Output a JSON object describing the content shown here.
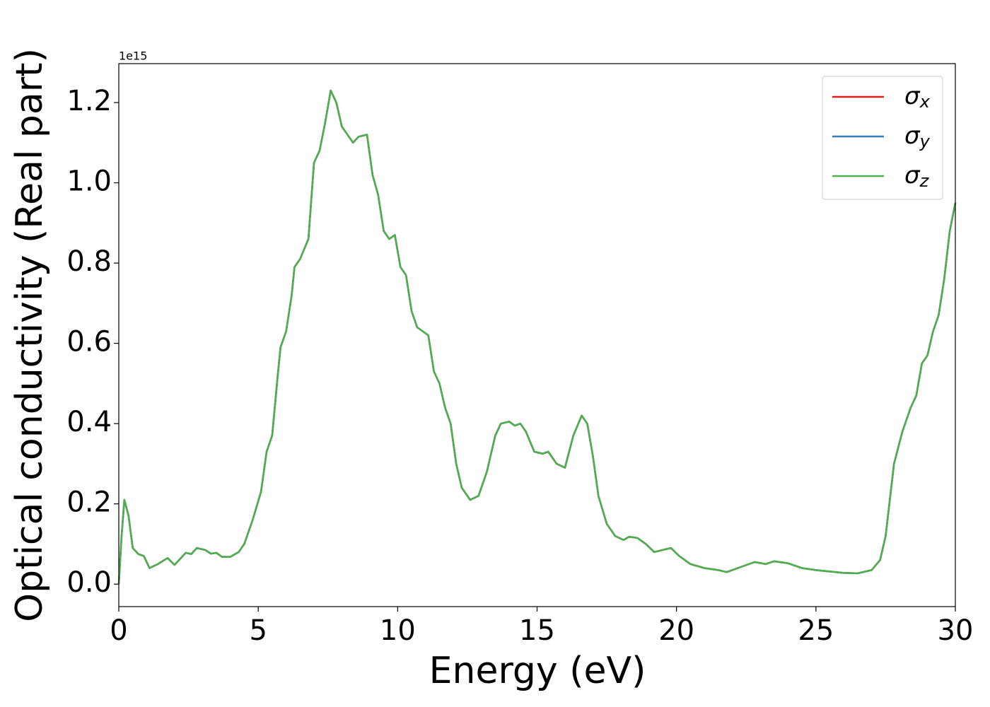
{
  "chart_data": {
    "type": "line",
    "xlabel": "Energy (eV)",
    "ylabel": "Optical conductivity (Real part)",
    "offset_text": "1e15",
    "x": [
      0,
      0.1,
      0.2,
      0.35,
      0.5,
      0.7,
      0.9,
      1.1,
      1.4,
      1.75,
      2.0,
      2.4,
      2.6,
      2.8,
      3.1,
      3.3,
      3.5,
      3.7,
      4.0,
      4.3,
      4.5,
      4.8,
      5.1,
      5.3,
      5.5,
      5.7,
      5.8,
      6.0,
      6.2,
      6.3,
      6.5,
      6.8,
      7.0,
      7.2,
      7.4,
      7.6,
      7.8,
      8.0,
      8.2,
      8.4,
      8.6,
      8.9,
      9.1,
      9.3,
      9.5,
      9.7,
      9.9,
      10.1,
      10.3,
      10.5,
      10.7,
      10.9,
      11.1,
      11.3,
      11.5,
      11.7,
      11.9,
      12.1,
      12.3,
      12.6,
      12.9,
      13.2,
      13.5,
      13.7,
      14.0,
      14.2,
      14.4,
      14.6,
      14.9,
      15.2,
      15.4,
      15.7,
      16.0,
      16.3,
      16.6,
      16.8,
      17.0,
      17.2,
      17.5,
      17.8,
      18.1,
      18.3,
      18.6,
      18.9,
      19.2,
      19.5,
      19.8,
      20.1,
      20.5,
      21.0,
      21.5,
      21.8,
      22.2,
      22.8,
      23.2,
      23.5,
      24.0,
      24.5,
      25.0,
      26.0,
      26.5,
      27.0,
      27.3,
      27.5,
      27.8,
      28.1,
      28.4,
      28.6,
      28.8,
      29.0,
      29.2,
      29.4,
      29.6,
      29.8,
      30.0
    ],
    "series": [
      {
        "name": "σx",
        "color": "#e41a1c",
        "values": [
          0,
          0.12,
          0.21,
          0.17,
          0.09,
          0.075,
          0.07,
          0.04,
          0.05,
          0.065,
          0.048,
          0.078,
          0.075,
          0.09,
          0.085,
          0.076,
          0.078,
          0.068,
          0.068,
          0.08,
          0.1,
          0.16,
          0.23,
          0.33,
          0.37,
          0.52,
          0.59,
          0.63,
          0.72,
          0.79,
          0.81,
          0.86,
          1.05,
          1.08,
          1.15,
          1.23,
          1.2,
          1.14,
          1.12,
          1.1,
          1.115,
          1.12,
          1.02,
          0.97,
          0.88,
          0.86,
          0.87,
          0.79,
          0.77,
          0.68,
          0.64,
          0.63,
          0.62,
          0.53,
          0.5,
          0.44,
          0.4,
          0.3,
          0.24,
          0.21,
          0.22,
          0.28,
          0.37,
          0.4,
          0.405,
          0.395,
          0.4,
          0.38,
          0.33,
          0.325,
          0.33,
          0.3,
          0.29,
          0.37,
          0.42,
          0.4,
          0.32,
          0.22,
          0.15,
          0.12,
          0.11,
          0.118,
          0.115,
          0.1,
          0.08,
          0.085,
          0.09,
          0.07,
          0.05,
          0.04,
          0.035,
          0.03,
          0.04,
          0.055,
          0.05,
          0.057,
          0.052,
          0.04,
          0.035,
          0.028,
          0.027,
          0.035,
          0.06,
          0.12,
          0.3,
          0.38,
          0.44,
          0.47,
          0.55,
          0.57,
          0.63,
          0.67,
          0.76,
          0.88,
          0.95
        ]
      },
      {
        "name": "σy",
        "color": "#377eb8",
        "values": [
          0,
          0.12,
          0.21,
          0.17,
          0.09,
          0.075,
          0.07,
          0.04,
          0.05,
          0.065,
          0.048,
          0.078,
          0.075,
          0.09,
          0.085,
          0.076,
          0.078,
          0.068,
          0.068,
          0.08,
          0.1,
          0.16,
          0.23,
          0.33,
          0.37,
          0.52,
          0.59,
          0.63,
          0.72,
          0.79,
          0.81,
          0.86,
          1.05,
          1.08,
          1.15,
          1.23,
          1.2,
          1.14,
          1.12,
          1.1,
          1.115,
          1.12,
          1.02,
          0.97,
          0.88,
          0.86,
          0.87,
          0.79,
          0.77,
          0.68,
          0.64,
          0.63,
          0.62,
          0.53,
          0.5,
          0.44,
          0.4,
          0.3,
          0.24,
          0.21,
          0.22,
          0.28,
          0.37,
          0.4,
          0.405,
          0.395,
          0.4,
          0.38,
          0.33,
          0.325,
          0.33,
          0.3,
          0.29,
          0.37,
          0.42,
          0.4,
          0.32,
          0.22,
          0.15,
          0.12,
          0.11,
          0.118,
          0.115,
          0.1,
          0.08,
          0.085,
          0.09,
          0.07,
          0.05,
          0.04,
          0.035,
          0.03,
          0.04,
          0.055,
          0.05,
          0.057,
          0.052,
          0.04,
          0.035,
          0.028,
          0.027,
          0.035,
          0.06,
          0.12,
          0.3,
          0.38,
          0.44,
          0.47,
          0.55,
          0.57,
          0.63,
          0.67,
          0.76,
          0.88,
          0.95
        ]
      },
      {
        "name": "σz",
        "color": "#4daf4a",
        "values": [
          0,
          0.12,
          0.21,
          0.17,
          0.09,
          0.075,
          0.07,
          0.04,
          0.05,
          0.065,
          0.048,
          0.078,
          0.075,
          0.09,
          0.085,
          0.076,
          0.078,
          0.068,
          0.068,
          0.08,
          0.1,
          0.16,
          0.23,
          0.33,
          0.37,
          0.52,
          0.59,
          0.63,
          0.72,
          0.79,
          0.81,
          0.86,
          1.05,
          1.08,
          1.15,
          1.23,
          1.2,
          1.14,
          1.12,
          1.1,
          1.115,
          1.12,
          1.02,
          0.97,
          0.88,
          0.86,
          0.87,
          0.79,
          0.77,
          0.68,
          0.64,
          0.63,
          0.62,
          0.53,
          0.5,
          0.44,
          0.4,
          0.3,
          0.24,
          0.21,
          0.22,
          0.28,
          0.37,
          0.4,
          0.405,
          0.395,
          0.4,
          0.38,
          0.33,
          0.325,
          0.33,
          0.3,
          0.29,
          0.37,
          0.42,
          0.4,
          0.32,
          0.22,
          0.15,
          0.12,
          0.11,
          0.118,
          0.115,
          0.1,
          0.08,
          0.085,
          0.09,
          0.07,
          0.05,
          0.04,
          0.035,
          0.03,
          0.04,
          0.055,
          0.05,
          0.057,
          0.052,
          0.04,
          0.035,
          0.028,
          0.027,
          0.035,
          0.06,
          0.12,
          0.3,
          0.38,
          0.44,
          0.47,
          0.55,
          0.57,
          0.63,
          0.67,
          0.76,
          0.88,
          0.95
        ]
      }
    ],
    "xlim": [
      0,
      30
    ],
    "xticks": [
      0,
      5,
      10,
      15,
      20,
      25,
      30
    ],
    "ylim": [
      -0.056,
      1.297
    ],
    "yticks": [
      {
        "value": 0,
        "label": "0.0"
      },
      {
        "value": 0.2,
        "label": "0.2"
      },
      {
        "value": 0.4,
        "label": "0.4"
      },
      {
        "value": 0.6,
        "label": "0.6"
      },
      {
        "value": 0.8,
        "label": "0.8"
      },
      {
        "value": 1.0,
        "label": "1.0"
      },
      {
        "value": 1.2,
        "label": "1.2"
      }
    ],
    "grid": false,
    "legend": "upper right"
  }
}
